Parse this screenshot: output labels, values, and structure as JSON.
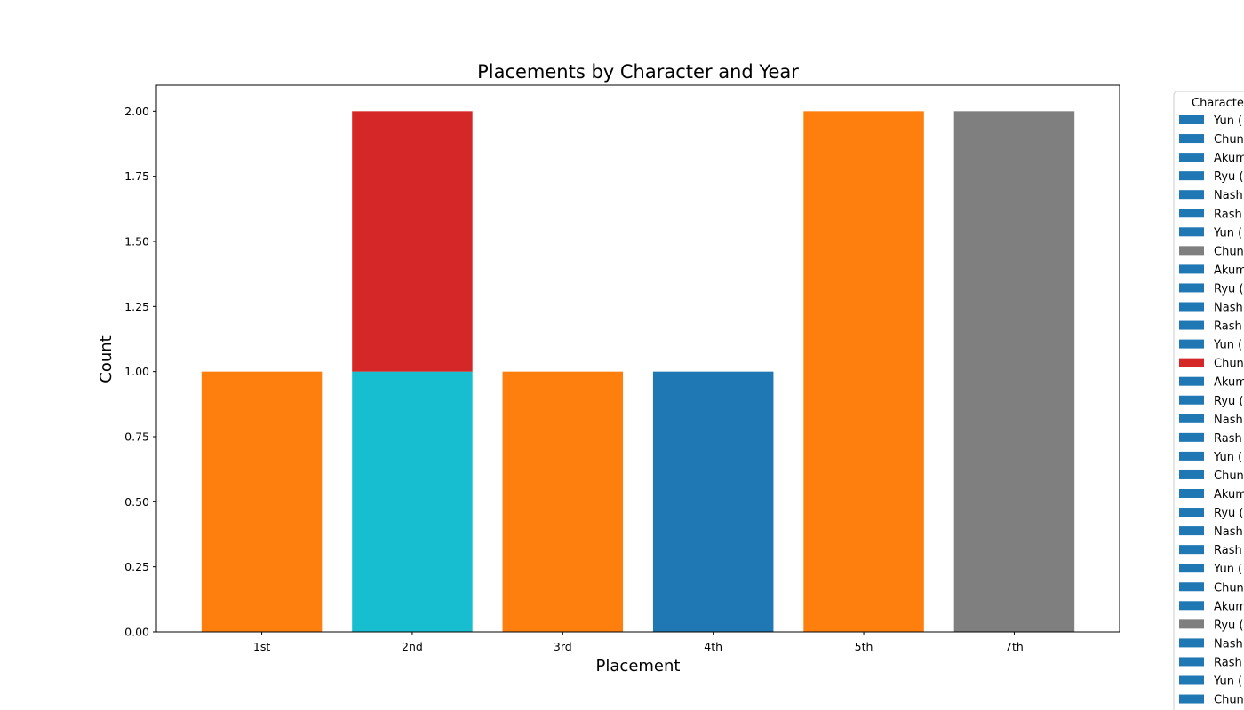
{
  "chart_data": {
    "type": "bar",
    "stacked": true,
    "title": "Placements by Character and Year",
    "xlabel": "Placement",
    "ylabel": "Count",
    "categories": [
      "1st",
      "2nd",
      "3rd",
      "4th",
      "5th",
      "7th"
    ],
    "ylim": [
      0,
      2.1
    ],
    "yticks": [
      "0.00",
      "0.25",
      "0.50",
      "0.75",
      "1.00",
      "1.25",
      "1.50",
      "1.75",
      "2.00"
    ],
    "grid": false,
    "legend_placement": "outside-right",
    "segments": [
      {
        "category": "1st",
        "base": 0,
        "value": 1,
        "color": "#ff7f0e"
      },
      {
        "category": "2nd",
        "base": 0,
        "value": 1,
        "color": "#17becf"
      },
      {
        "category": "2nd",
        "base": 1,
        "value": 1,
        "color": "#d62728"
      },
      {
        "category": "3rd",
        "base": 0,
        "value": 1,
        "color": "#ff7f0e"
      },
      {
        "category": "4th",
        "base": 0,
        "value": 1,
        "color": "#1f77b4"
      },
      {
        "category": "5th",
        "base": 0,
        "value": 2,
        "color": "#ff7f0e"
      },
      {
        "category": "7th",
        "base": 0,
        "value": 2,
        "color": "#7f7f7f"
      }
    ],
    "legend": {
      "title": "Characte",
      "entries": [
        {
          "label": "Yun (",
          "color": "#1f77b4"
        },
        {
          "label": "Chun",
          "color": "#1f77b4"
        },
        {
          "label": "Akum",
          "color": "#1f77b4"
        },
        {
          "label": "Ryu (",
          "color": "#1f77b4"
        },
        {
          "label": "Nash",
          "color": "#1f77b4"
        },
        {
          "label": "Rash",
          "color": "#1f77b4"
        },
        {
          "label": "Yun (",
          "color": "#1f77b4"
        },
        {
          "label": "Chun",
          "color": "#7f7f7f"
        },
        {
          "label": "Akum",
          "color": "#1f77b4"
        },
        {
          "label": "Ryu (",
          "color": "#1f77b4"
        },
        {
          "label": "Nash",
          "color": "#1f77b4"
        },
        {
          "label": "Rash",
          "color": "#1f77b4"
        },
        {
          "label": "Yun (",
          "color": "#1f77b4"
        },
        {
          "label": "Chun",
          "color": "#d62728"
        },
        {
          "label": "Akum",
          "color": "#1f77b4"
        },
        {
          "label": "Ryu (",
          "color": "#1f77b4"
        },
        {
          "label": "Nash",
          "color": "#1f77b4"
        },
        {
          "label": "Rash",
          "color": "#1f77b4"
        },
        {
          "label": "Yun (",
          "color": "#1f77b4"
        },
        {
          "label": "Chun",
          "color": "#1f77b4"
        },
        {
          "label": "Akum",
          "color": "#1f77b4"
        },
        {
          "label": "Ryu (",
          "color": "#1f77b4"
        },
        {
          "label": "Nash",
          "color": "#1f77b4"
        },
        {
          "label": "Rash",
          "color": "#1f77b4"
        },
        {
          "label": "Yun (",
          "color": "#1f77b4"
        },
        {
          "label": "Chun",
          "color": "#1f77b4"
        },
        {
          "label": "Akum",
          "color": "#1f77b4"
        },
        {
          "label": "Ryu (",
          "color": "#7f7f7f"
        },
        {
          "label": "Nash",
          "color": "#1f77b4"
        },
        {
          "label": "Rash",
          "color": "#1f77b4"
        },
        {
          "label": "Yun (",
          "color": "#1f77b4"
        },
        {
          "label": "Chun",
          "color": "#1f77b4"
        }
      ]
    }
  }
}
